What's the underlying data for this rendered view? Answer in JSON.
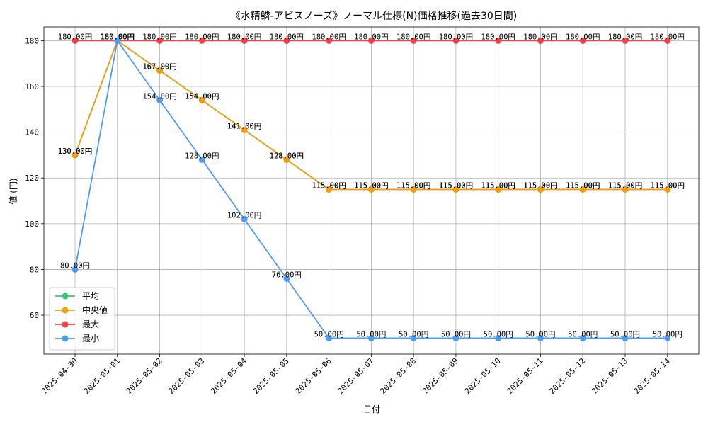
{
  "chart_data": {
    "type": "line",
    "title": "《水精鱗-アビスノーズ》ノーマル仕様(N)価格推移(過去30日間)",
    "xlabel": "日付",
    "ylabel": "値 (円)",
    "ylim": [
      43,
      186
    ],
    "yticks": [
      60,
      80,
      100,
      120,
      140,
      160,
      180
    ],
    "grid": true,
    "legend_position": "lower-left",
    "label_suffix": "円",
    "categories": [
      "2025-04-30",
      "2025-05-01",
      "2025-05-02",
      "2025-05-03",
      "2025-05-04",
      "2025-05-05",
      "2025-05-06",
      "2025-05-07",
      "2025-05-08",
      "2025-05-09",
      "2025-05-10",
      "2025-05-11",
      "2025-05-12",
      "2025-05-13",
      "2025-05-14"
    ],
    "series": [
      {
        "name": "平均",
        "color": "#2ecc71",
        "values": [
          130,
          180,
          167,
          154,
          141,
          128,
          115,
          115,
          115,
          115,
          115,
          115,
          115,
          115,
          115
        ]
      },
      {
        "name": "中央値",
        "color": "#f39c12",
        "values": [
          130,
          180,
          167,
          154,
          141,
          128,
          115,
          115,
          115,
          115,
          115,
          115,
          115,
          115,
          115
        ]
      },
      {
        "name": "最大",
        "color": "#ef4444",
        "values": [
          180,
          180,
          180,
          180,
          180,
          180,
          180,
          180,
          180,
          180,
          180,
          180,
          180,
          180,
          180
        ]
      },
      {
        "name": "最小",
        "color": "#4d9cf5",
        "values": [
          80,
          180,
          154,
          128,
          102,
          76,
          50,
          50,
          50,
          50,
          50,
          50,
          50,
          50,
          50
        ]
      }
    ]
  }
}
